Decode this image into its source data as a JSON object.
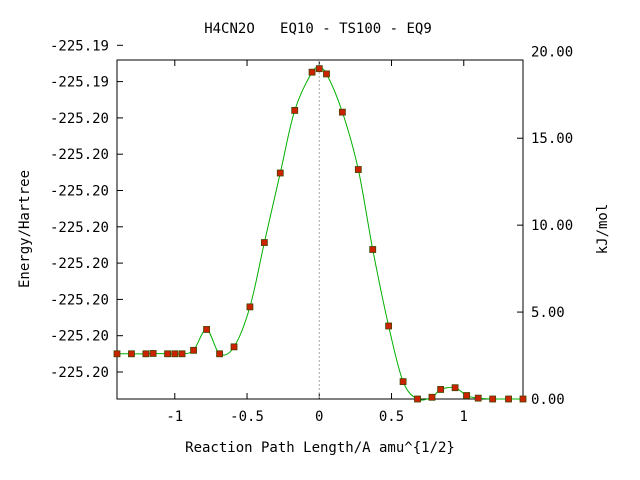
{
  "chart_data": {
    "type": "line",
    "title": "H4CN2O   EQ10 - TS100 - EQ9",
    "xlabel": "Reaction Path Length/A amu^{1/2}",
    "ylabel": "Energy/Hartree",
    "y2label": "kJ/mol",
    "xlim": [
      -1.4,
      1.41
    ],
    "y2lim": [
      0.0,
      19.5
    ],
    "x_ticks": [
      -1,
      -0.5,
      0,
      0.5,
      1
    ],
    "x_tick_labels": [
      "-1",
      "-0.5",
      "0",
      "0.5",
      "1"
    ],
    "y_tick_labels": [
      "-225.20",
      "-225.20",
      "-225.20",
      "-225.20",
      "-225.20",
      "-225.20",
      "-225.20",
      "-225.20",
      "-225.19",
      "-225.19"
    ],
    "y2_ticks": [
      0,
      5,
      10,
      15,
      20
    ],
    "y2_tick_labels": [
      "0.00",
      "5.00",
      "10.00",
      "15.00",
      "20.00"
    ],
    "ts_x": 0,
    "grid": false,
    "colors": {
      "curve": "#00b000",
      "point_fill": "#cc2200",
      "point_edge": "#444400",
      "ts_line": "#aaaaaa"
    },
    "series": [
      {
        "x": [
          -1.4,
          -1.3,
          -1.2,
          -1.15,
          -1.05,
          -1.0,
          -0.95,
          -0.87,
          -0.78,
          -0.69,
          -0.59,
          -0.48,
          -0.38,
          -0.27,
          -0.17,
          -0.05,
          0.0,
          0.05,
          0.16,
          0.27,
          0.37,
          0.48,
          0.58,
          0.68,
          0.78,
          0.84,
          0.94,
          1.02,
          1.1,
          1.2,
          1.31,
          1.41
        ],
        "y": [
          2.6,
          2.6,
          2.6,
          2.62,
          2.6,
          2.6,
          2.6,
          2.8,
          4.0,
          2.6,
          3.0,
          5.3,
          9.0,
          13.0,
          16.6,
          18.8,
          19.0,
          18.7,
          16.5,
          13.2,
          8.6,
          4.2,
          1.0,
          0.0,
          0.1,
          0.55,
          0.65,
          0.2,
          0.05,
          0.0,
          0.0,
          0.0
        ]
      }
    ]
  }
}
